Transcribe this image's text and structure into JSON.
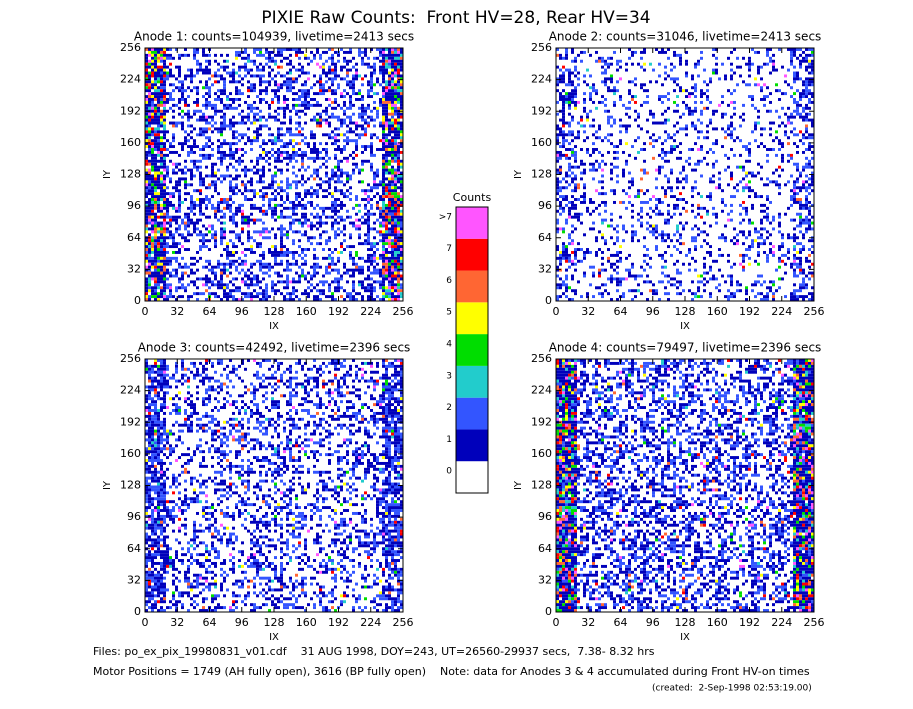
{
  "title": "PIXIE Raw Counts:  Front HV=28, Rear HV=34",
  "panels": [
    {
      "title": "Anode 1: counts=104939, livetime=2413 secs",
      "xlabel": "IX",
      "ylabel": "IY",
      "xlim": [
        0,
        256
      ],
      "ylim": [
        0,
        256
      ],
      "xticks": [
        0,
        32,
        64,
        96,
        128,
        160,
        192,
        224,
        256
      ],
      "yticks": [
        0,
        32,
        64,
        96,
        128,
        160,
        192,
        224,
        256
      ]
    },
    {
      "title": "Anode 2: counts=31046, livetime=2413 secs",
      "xlabel": "IX",
      "ylabel": "IY",
      "xlim": [
        0,
        256
      ],
      "ylim": [
        0,
        256
      ],
      "xticks": [
        0,
        32,
        64,
        96,
        128,
        160,
        192,
        224,
        256
      ],
      "yticks": [
        0,
        32,
        64,
        96,
        128,
        160,
        192,
        224,
        256
      ]
    },
    {
      "title": "Anode 3: counts=42492, livetime=2396 secs",
      "xlabel": "IX",
      "ylabel": "IY",
      "xlim": [
        0,
        256
      ],
      "ylim": [
        0,
        256
      ],
      "xticks": [
        0,
        32,
        64,
        96,
        128,
        160,
        192,
        224,
        256
      ],
      "yticks": [
        0,
        32,
        64,
        96,
        128,
        160,
        192,
        224,
        256
      ]
    },
    {
      "title": "Anode 4: counts=79497, livetime=2396 secs",
      "xlabel": "IX",
      "ylabel": "IY",
      "xlim": [
        0,
        256
      ],
      "ylim": [
        0,
        256
      ],
      "xticks": [
        0,
        32,
        64,
        96,
        128,
        160,
        192,
        224,
        256
      ],
      "yticks": [
        0,
        32,
        64,
        96,
        128,
        160,
        192,
        224,
        256
      ]
    }
  ],
  "colorbar": {
    "title": "Counts",
    "colors": [
      "#ffffff",
      "#0000bb",
      "#3355ff",
      "#22cccc",
      "#00dd00",
      "#ffff00",
      "#ff6633",
      "#ff0000",
      "#ff55ff"
    ],
    "ticks": [
      0,
      1,
      2,
      3,
      4,
      5,
      6,
      7,
      {
        "value": 8,
        "label": ">7"
      }
    ]
  },
  "footer": [
    "Files: po_ex_pix_19980831_v01.cdf    31 AUG 1998, DOY=243, UT=26560-29937 secs,  7.38- 8.32 hrs",
    "Motor Positions = 1749 (AH fully open), 3616 (BP fully open)    Note: data for Anodes 3 & 4 accumulated during Front HV-on times",
    "(created:  2-Sep-1998 02:53:19.00)"
  ]
}
